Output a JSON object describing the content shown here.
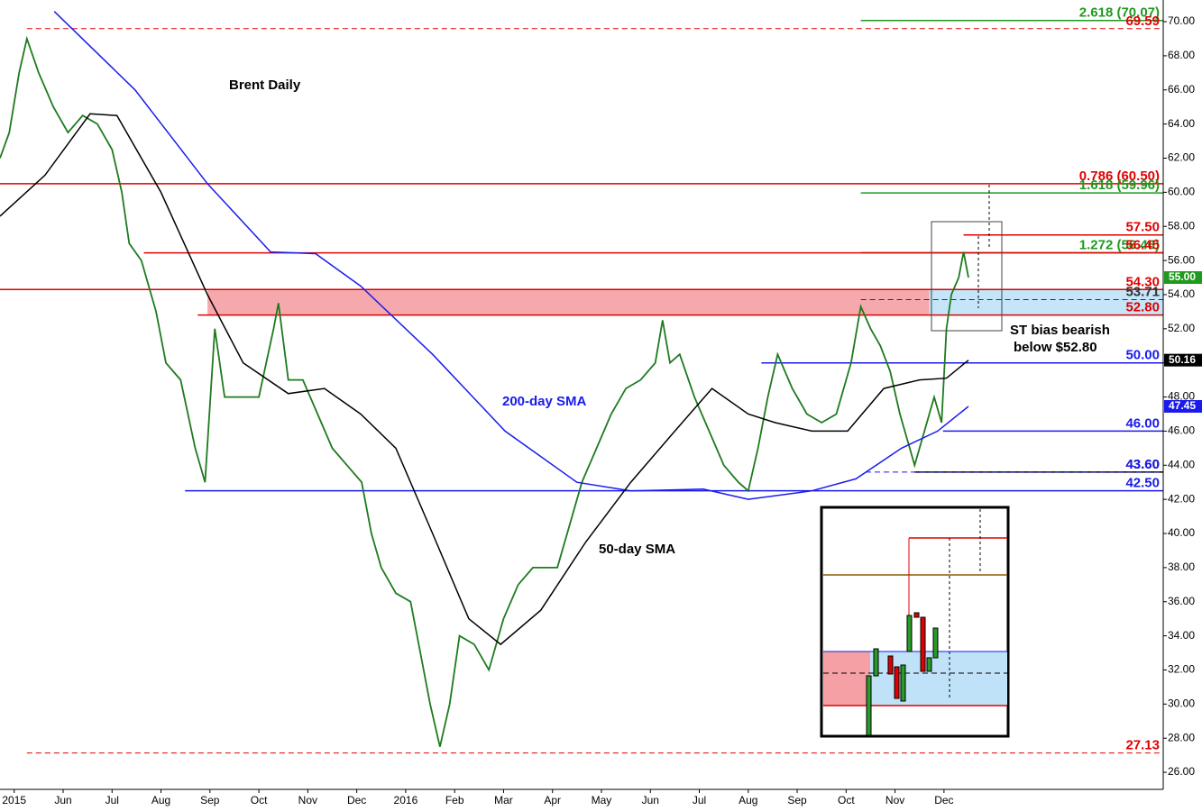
{
  "chart_data": {
    "type": "line",
    "title": "Brent Daily",
    "annotations": [
      "200-day SMA",
      "50-day SMA",
      "ST bias bearish",
      "below $52.80"
    ],
    "xlim": [
      -0.29,
      23.48
    ],
    "ylim": [
      25,
      71.27
    ],
    "xticks": [
      {
        "value": 0,
        "label": "2015"
      },
      {
        "value": 1,
        "label": "Jun"
      },
      {
        "value": 2,
        "label": "Jul"
      },
      {
        "value": 3,
        "label": "Aug"
      },
      {
        "value": 4,
        "label": "Sep"
      },
      {
        "value": 5,
        "label": "Oct"
      },
      {
        "value": 6,
        "label": "Nov"
      },
      {
        "value": 7,
        "label": "Dec"
      },
      {
        "value": 8,
        "label": "2016"
      },
      {
        "value": 9,
        "label": "Feb"
      },
      {
        "value": 10,
        "label": "Mar"
      },
      {
        "value": 11,
        "label": "Apr"
      },
      {
        "value": 12,
        "label": "May"
      },
      {
        "value": 13,
        "label": "Jun"
      },
      {
        "value": 14,
        "label": "Jul"
      },
      {
        "value": 15,
        "label": "Aug"
      },
      {
        "value": 16,
        "label": "Sep"
      },
      {
        "value": 17,
        "label": "Oct"
      },
      {
        "value": 18,
        "label": "Nov"
      },
      {
        "value": 19,
        "label": "Dec"
      }
    ],
    "yticks": [
      {
        "value": 26,
        "label": "26.00"
      },
      {
        "value": 28,
        "label": "28.00"
      },
      {
        "value": 30,
        "label": "30.00"
      },
      {
        "value": 32,
        "label": "32.00"
      },
      {
        "value": 34,
        "label": "34.00"
      },
      {
        "value": 36,
        "label": "36.00"
      },
      {
        "value": 38,
        "label": "38.00"
      },
      {
        "value": 40,
        "label": "40.00"
      },
      {
        "value": 42,
        "label": "42.00"
      },
      {
        "value": 44,
        "label": "44.00"
      },
      {
        "value": 46,
        "label": "46.00"
      },
      {
        "value": 48,
        "label": "48.00"
      },
      {
        "value": 50,
        "label": "50.00"
      },
      {
        "value": 52,
        "label": "52.00"
      },
      {
        "value": 54,
        "label": "54.00"
      },
      {
        "value": 56,
        "label": "56.00"
      },
      {
        "value": 58,
        "label": "58.00"
      },
      {
        "value": 60,
        "label": "60.00"
      },
      {
        "value": 62,
        "label": "62.00"
      },
      {
        "value": 64,
        "label": "64.00"
      },
      {
        "value": 66,
        "label": "66.00"
      },
      {
        "value": 68,
        "label": "68.00"
      },
      {
        "value": 70,
        "label": "70.00"
      }
    ],
    "series": [
      {
        "name": "Brent",
        "color": "#1f7a1f",
        "x": [
          -0.29,
          -0.1,
          0.1,
          0.26,
          0.5,
          0.8,
          1.1,
          1.4,
          1.7,
          2.0,
          2.2,
          2.35,
          2.6,
          2.9,
          3.1,
          3.4,
          3.7,
          3.9,
          4.1,
          4.3,
          4.6,
          5.0,
          5.3,
          5.4,
          5.6,
          5.9,
          6.2,
          6.5,
          6.8,
          7.1,
          7.3,
          7.5,
          7.8,
          8.1,
          8.3,
          8.5,
          8.7,
          8.9,
          9.1,
          9.4,
          9.7,
          10.0,
          10.3,
          10.6,
          10.9,
          11.1,
          11.3,
          11.6,
          11.9,
          12.2,
          12.5,
          12.8,
          13.1,
          13.25,
          13.4,
          13.6,
          13.9,
          14.2,
          14.5,
          14.8,
          15.0,
          15.2,
          15.4,
          15.6,
          15.9,
          16.2,
          16.5,
          16.8,
          17.1,
          17.3,
          17.5,
          17.7,
          17.9,
          18.1,
          18.3,
          18.4,
          18.6,
          18.8,
          18.95,
          19.05,
          19.15,
          19.3,
          19.4,
          19.5
        ],
        "values": [
          62,
          63.5,
          67,
          69,
          67,
          65,
          63.5,
          64.5,
          64,
          62.5,
          60,
          57,
          56,
          53,
          50,
          49,
          45,
          43,
          52,
          48,
          48,
          48,
          52,
          53.5,
          49,
          49,
          47,
          45,
          44,
          43,
          40,
          38,
          36.5,
          36,
          33,
          30,
          27.5,
          30,
          34,
          33.5,
          32,
          35,
          37,
          38,
          38,
          38,
          40,
          43,
          45,
          47,
          48.5,
          49,
          50,
          52.5,
          50,
          50.5,
          48,
          46,
          44,
          43,
          42.5,
          45,
          48,
          50.5,
          48.5,
          47,
          46.5,
          47,
          50,
          53.3,
          52,
          51,
          49.5,
          47,
          45,
          44,
          46,
          48,
          46.5,
          52,
          54,
          55,
          56.5,
          55
        ]
      },
      {
        "name": "200-day SMA",
        "color": "#1a1aee",
        "x": [
          0.82,
          2.47,
          3.95,
          5.24,
          6.16,
          7.08,
          8.55,
          10.03,
          11.5,
          12.6,
          14.08,
          15.0,
          16.3,
          17.2,
          18.13,
          18.87,
          19.5
        ],
        "values": [
          70.6,
          66,
          60.5,
          56.5,
          56.4,
          54.5,
          50.5,
          46,
          43,
          42.5,
          42.6,
          42,
          42.5,
          43.2,
          45,
          46,
          47.45
        ]
      },
      {
        "name": "50-day SMA",
        "color": "#000000",
        "x": [
          -0.29,
          0.63,
          1.55,
          2.1,
          3.0,
          3.95,
          4.68,
          5.6,
          6.34,
          7.08,
          7.8,
          8.55,
          9.29,
          9.94,
          10.76,
          11.68,
          12.6,
          13.5,
          14.26,
          15.0,
          15.55,
          16.3,
          17.03,
          17.77,
          18.5,
          19.05,
          19.5
        ],
        "values": [
          58.6,
          61,
          64.6,
          64.5,
          60,
          54,
          50,
          48.2,
          48.5,
          47,
          45,
          40,
          35,
          33.5,
          35.5,
          39.5,
          43,
          46,
          48.5,
          47,
          46.5,
          46,
          46,
          48.5,
          49,
          49.1,
          50.16
        ]
      }
    ],
    "last_labels": [
      {
        "value": 55,
        "label": "55.00",
        "color": "#1f9a1f"
      },
      {
        "value": 50.16,
        "label": "50.16",
        "color": "#000000"
      },
      {
        "value": 47.45,
        "label": "47.45",
        "color": "#1a1aee"
      }
    ],
    "zones": [
      {
        "from": 52.8,
        "to": 54.3,
        "start": 3.95,
        "end": 18.7,
        "color": "#f4a0a4"
      },
      {
        "from": 52.8,
        "to": 54.3,
        "start": 18.7,
        "end": 23.48,
        "color": "#bfe2f8"
      }
    ],
    "levels": [
      {
        "value": 70.07,
        "label": "2.618 (70.07)",
        "color": "#1f9a1f",
        "start": 17.3,
        "dash": false
      },
      {
        "value": 69.59,
        "label": "69.59",
        "color": "#e00000",
        "start": 0.26,
        "dash": true
      },
      {
        "value": 60.5,
        "label": "0.786 (60.50)",
        "color": "#e00000",
        "start": -0.29,
        "dash": false
      },
      {
        "value": 59.96,
        "label": "1.618 (59.96)",
        "color": "#1f9a1f",
        "start": 17.3,
        "dash": false
      },
      {
        "value": 57.5,
        "label": "57.50",
        "color": "#e00000",
        "start": 19.4,
        "dash": false
      },
      {
        "value": 56.46,
        "label": "1.272 (56.46)",
        "color": "#1f9a1f",
        "start": 17.3,
        "dash": false
      },
      {
        "value": 56.45,
        "label": "56.45",
        "color": "#e00000",
        "start": 2.65,
        "dash": false
      },
      {
        "value": 54.3,
        "label": "54.30",
        "color": "#e00000",
        "start": -0.29,
        "dash": false
      },
      {
        "value": 53.71,
        "label": "53.71",
        "color": "#333333",
        "start": 17.3,
        "dash": true
      },
      {
        "value": 52.8,
        "label": "52.80",
        "color": "#e00000",
        "start": 3.75,
        "dash": false
      },
      {
        "value": 50,
        "label": "50.00",
        "color": "#1a1aee",
        "start": 15.27,
        "dash": false
      },
      {
        "value": 46,
        "label": "46.00",
        "color": "#1a1aee",
        "start": 18.98,
        "dash": false
      },
      {
        "value": 43.6,
        "label": "43.60",
        "color": "#000000",
        "start": 18.4,
        "dash": false
      },
      {
        "value": 43.6,
        "label": "43.60",
        "color": "#1a1aee",
        "start": 17.4,
        "dash": true
      },
      {
        "value": 42.5,
        "label": "42.50",
        "color": "#1a1aee",
        "start": 3.49,
        "dash": false
      },
      {
        "value": 27.13,
        "label": "27.13",
        "color": "#e00000",
        "start": 0.26,
        "dash": true
      }
    ]
  }
}
